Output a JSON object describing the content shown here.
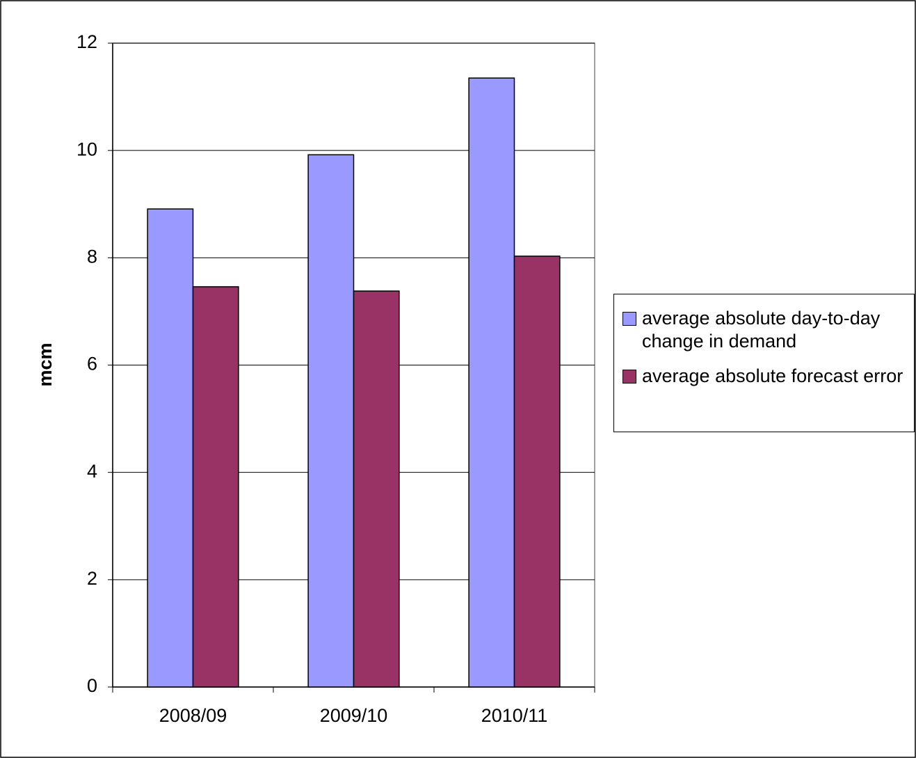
{
  "chart_data": {
    "type": "bar",
    "ylabel": "mcm",
    "categories": [
      "2008/09",
      "2009/10",
      "2010/11"
    ],
    "series": [
      {
        "name": "average absolute day-to-day change in demand",
        "color": "#9999ff",
        "values": [
          8.91,
          9.92,
          11.35
        ]
      },
      {
        "name": "average absolute forecast error",
        "color": "#993366",
        "values": [
          7.46,
          7.38,
          8.03
        ]
      }
    ],
    "ylim": [
      0,
      12
    ],
    "yticks": [
      0,
      2,
      4,
      6,
      8,
      10,
      12
    ],
    "grid": true,
    "legend": "right"
  }
}
